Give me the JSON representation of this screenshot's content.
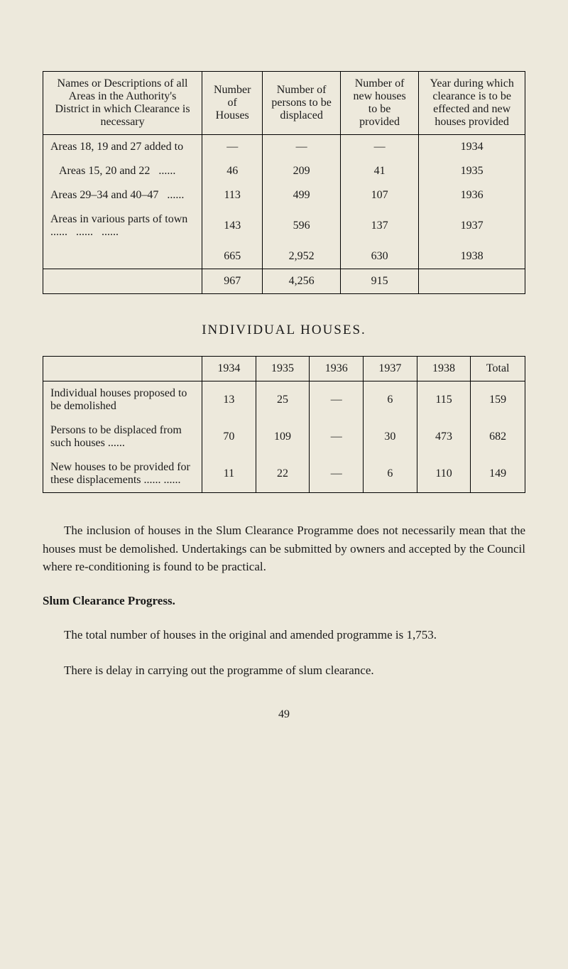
{
  "table1": {
    "headers": {
      "col1": "Names or Descriptions of all Areas in the Authority's District in which Clearance is necessary",
      "col2": "Number of Houses",
      "col3": "Number of persons to be displaced",
      "col4": "Number of new houses to be provided",
      "col5": "Year during which clearance is to be effected and new houses provided"
    },
    "rows": [
      {
        "desc": "Areas 18, 19 and 27 added to",
        "houses": "—",
        "persons": "—",
        "newhouses": "—",
        "year": "1934"
      },
      {
        "desc": "   Areas 15, 20 and 22   ......",
        "houses": "46",
        "persons": "209",
        "newhouses": "41",
        "year": "1935"
      },
      {
        "desc": "Areas 29–34 and 40–47   ......",
        "houses": "113",
        "persons": "499",
        "newhouses": "107",
        "year": "1936"
      },
      {
        "desc": "Areas in various parts of town   ......   ......   ......",
        "houses": "143",
        "persons": "596",
        "newhouses": "137",
        "year": "1937"
      },
      {
        "desc": "",
        "houses": "665",
        "persons": "2,952",
        "newhouses": "630",
        "year": "1938"
      }
    ],
    "total": {
      "desc": "",
      "houses": "967",
      "persons": "4,256",
      "newhouses": "915",
      "year": ""
    }
  },
  "section_title": "INDIVIDUAL HOUSES.",
  "table2": {
    "headers": [
      "",
      "1934",
      "1935",
      "1936",
      "1937",
      "1938",
      "Total"
    ],
    "rows": [
      {
        "desc": "Individual houses proposed to be demolished",
        "y1934": "13",
        "y1935": "25",
        "y1936": "—",
        "y1937": "6",
        "y1938": "115",
        "total": "159"
      },
      {
        "desc": "Persons to be displaced from such houses   ......",
        "y1934": "70",
        "y1935": "109",
        "y1936": "—",
        "y1937": "30",
        "y1938": "473",
        "total": "682"
      },
      {
        "desc": "New houses to be provided for these displacements   ......   ......",
        "y1934": "11",
        "y1935": "22",
        "y1936": "—",
        "y1937": "6",
        "y1938": "110",
        "total": "149"
      }
    ]
  },
  "para1": "The inclusion of houses in the Slum Clearance Programme does not necessarily mean that the houses must be demolished. Undertakings can be submitted by owners and accepted by the Council where re-conditioning is found to be practical.",
  "heading1": "Slum Clearance Progress.",
  "para2": "The total number of houses in the original and amended programme is 1,753.",
  "para3": "There is delay in carrying out the programme of slum clearance.",
  "page_number": "49",
  "colors": {
    "background": "#ede9dc",
    "text": "#1a1a1a",
    "border": "#000000"
  },
  "typography": {
    "body_fontsize": 17,
    "table_fontsize": 16,
    "title_fontsize": 19,
    "font_family": "Times New Roman"
  }
}
